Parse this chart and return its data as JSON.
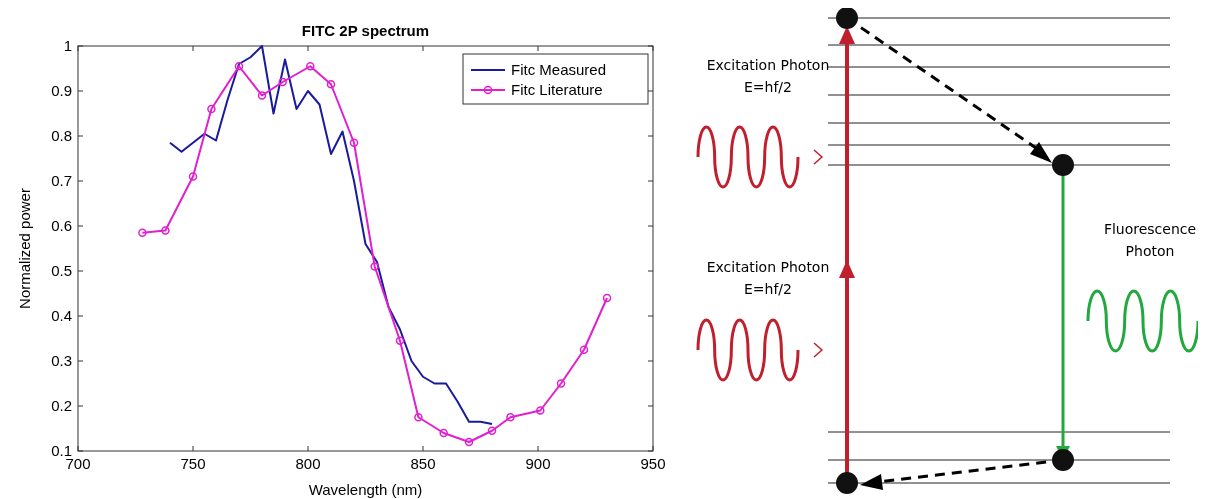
{
  "chart_data": {
    "type": "line",
    "title": "FITC 2P spectrum",
    "xlabel": "Wavelength (nm)",
    "ylabel": "Normalized power",
    "xlim": [
      700,
      950
    ],
    "xticks": [
      700,
      750,
      800,
      850,
      900,
      950
    ],
    "ylim": [
      0.1,
      1
    ],
    "yticks": [
      0.1,
      0.2,
      0.3,
      0.4,
      0.5,
      0.6,
      0.7,
      0.8,
      0.9,
      1
    ],
    "legend": "top right",
    "grid": false,
    "series": [
      {
        "name": "Fitc Measured",
        "color": "#1a1a9c",
        "marker": "none",
        "x": [
          740,
          745,
          755,
          760,
          765,
          770,
          775,
          780,
          785,
          790,
          795,
          800,
          805,
          810,
          815,
          820,
          825,
          830,
          835,
          840,
          845,
          850,
          855,
          860,
          865,
          870,
          875,
          880
        ],
        "values": [
          0.785,
          0.765,
          0.805,
          0.79,
          0.88,
          0.96,
          0.975,
          1.0,
          0.85,
          0.97,
          0.86,
          0.9,
          0.87,
          0.76,
          0.81,
          0.7,
          0.56,
          0.52,
          0.42,
          0.37,
          0.3,
          0.265,
          0.25,
          0.25,
          0.21,
          0.165,
          0.165,
          0.16
        ]
      },
      {
        "name": "Fitc Literature",
        "color": "#e020d0",
        "marker": "circle",
        "x": [
          728,
          738,
          750,
          758,
          770,
          780,
          789,
          801,
          810,
          820,
          829,
          840,
          848,
          859,
          870,
          880,
          888,
          901,
          910,
          920,
          930
        ],
        "values": [
          0.585,
          0.59,
          0.71,
          0.86,
          0.955,
          0.89,
          0.92,
          0.955,
          0.915,
          0.785,
          0.51,
          0.345,
          0.175,
          0.14,
          0.12,
          0.145,
          0.175,
          0.19,
          0.25,
          0.325,
          0.44
        ]
      }
    ],
    "annotations": [
      "Excitation Photon\nE=hf/2",
      "Excitation Photon\nE=hf/2",
      "Fluorescence\nPhoton"
    ]
  }
}
